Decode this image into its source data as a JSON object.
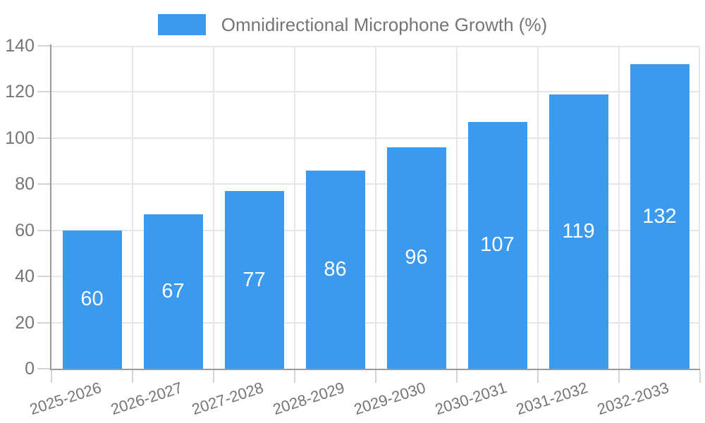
{
  "chart_data": {
    "type": "bar",
    "title": "Omnidirectional Microphone Growth (%)",
    "categories": [
      "2025-2026",
      "2026-2027",
      "2027-2028",
      "2028-2029",
      "2029-2030",
      "2030-2031",
      "2031-2032",
      "2032-2033"
    ],
    "values": [
      60,
      67,
      77,
      86,
      96,
      107,
      119,
      132
    ],
    "xlabel": "",
    "ylabel": "",
    "ylim": [
      0,
      140
    ],
    "yticks": [
      0,
      20,
      40,
      60,
      80,
      100,
      120,
      140
    ],
    "legend_position": "top",
    "grid": true,
    "value_labels": "inside-center",
    "colors": {
      "bar": "#3B99EE",
      "bar_label": "#FFFFFF",
      "axis_text": "#757575",
      "grid": "#E6E6E6",
      "tick": "#D4D4D4",
      "axis_line": "#9A9A9A",
      "background": "#FFFFFF"
    }
  }
}
